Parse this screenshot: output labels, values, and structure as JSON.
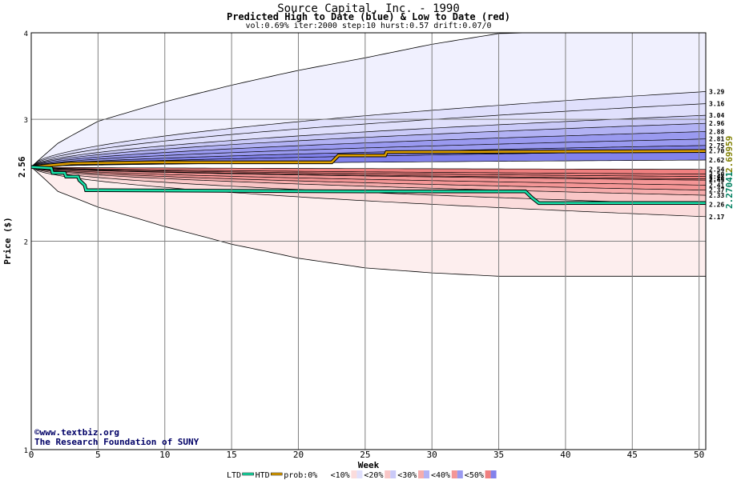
{
  "header": {
    "title": "Source Capital, Inc. - 1990",
    "subtitle": "Predicted High to Date (blue) &  Low to Date (red)",
    "params": "vol:0.69% iter:2000 step:10 hurst:0.57 drift:0.07/0"
  },
  "credits": {
    "line1": "©www.textbiz.org",
    "line2": "The Research Foundation of SUNY"
  },
  "legend": {
    "ltd": "LTD",
    "htd": "HTD",
    "prob": "prob:0%",
    "bins": [
      "<10%",
      "<20%",
      "<30%",
      "<40%",
      "<50%"
    ],
    "ltd_color": "#19e0a8",
    "htd_color": "#e0a000"
  },
  "colors": {
    "htd": "#e0a000",
    "ltd": "#19e0a8",
    "blue_bands": [
      "#f0f0fe",
      "#e0e0fc",
      "#cacaf8",
      "#b2b2f4",
      "#9a9af0",
      "#8282ec"
    ],
    "red_bands": [
      "#fdeeee",
      "#fbdcdc",
      "#f9c6c6",
      "#f6acac",
      "#f49696",
      "#f08080"
    ],
    "grid": "#808080",
    "annotation": "#808000"
  },
  "chart_data": {
    "type": "area",
    "xlabel": "Week",
    "ylabel": "Price ($)",
    "xlim": [
      0,
      50.5
    ],
    "ylim": [
      1,
      4
    ],
    "yscale": "log",
    "xticks": [
      0,
      5,
      10,
      15,
      20,
      25,
      30,
      35,
      40,
      45,
      50
    ],
    "yticks": [
      1,
      2,
      3,
      4
    ],
    "start_price": 2.56,
    "start_label": "2.56",
    "upper_envelope_outer": [
      [
        0,
        2.56
      ],
      [
        2,
        2.77
      ],
      [
        5,
        2.98
      ],
      [
        10,
        3.18
      ],
      [
        15,
        3.36
      ],
      [
        20,
        3.53
      ],
      [
        25,
        3.68
      ],
      [
        30,
        3.85
      ],
      [
        35,
        3.99
      ],
      [
        37,
        4.0
      ]
    ],
    "lower_envelope_outer": [
      [
        0,
        2.56
      ],
      [
        2,
        2.36
      ],
      [
        5,
        2.24
      ],
      [
        10,
        2.1
      ],
      [
        15,
        1.98
      ],
      [
        20,
        1.89
      ],
      [
        25,
        1.83
      ],
      [
        30,
        1.8
      ],
      [
        35,
        1.78
      ],
      [
        40,
        1.78
      ],
      [
        50.5,
        1.78
      ]
    ],
    "upper_quantile_end": [
      3.29,
      3.16,
      3.04,
      2.96,
      2.88,
      2.81,
      2.75,
      2.7,
      2.62
    ],
    "lower_quantile_end": [
      2.54,
      2.5,
      2.48,
      2.46,
      2.45,
      2.41,
      2.37,
      2.33,
      2.26,
      2.17
    ],
    "right_labels": [
      "3.29",
      "3.16",
      "3.04",
      "2.96",
      "2.88",
      "2.81",
      "2.75",
      "2.70",
      "2.62",
      "2.54",
      "2.50",
      "2.48",
      "2.46",
      "2.45",
      "2.41",
      "2.37",
      "2.33",
      "2.26",
      "2.17"
    ],
    "series": [
      {
        "name": "HTD",
        "points": [
          [
            0,
            2.56
          ],
          [
            1,
            2.57
          ],
          [
            2,
            2.58
          ],
          [
            3,
            2.59
          ],
          [
            9,
            2.6
          ],
          [
            22.5,
            2.6
          ],
          [
            23,
            2.66
          ],
          [
            26.5,
            2.66
          ],
          [
            26.6,
            2.69
          ],
          [
            50.5,
            2.69959
          ]
        ]
      },
      {
        "name": "LTD",
        "points": [
          [
            0,
            2.56
          ],
          [
            1.5,
            2.55
          ],
          [
            1.6,
            2.51
          ],
          [
            2.5,
            2.51
          ],
          [
            2.6,
            2.48
          ],
          [
            3.5,
            2.48
          ],
          [
            3.6,
            2.45
          ],
          [
            4,
            2.41
          ],
          [
            4.1,
            2.37
          ],
          [
            25,
            2.36
          ],
          [
            37,
            2.36
          ],
          [
            37.5,
            2.31
          ],
          [
            38,
            2.27
          ],
          [
            40,
            2.27
          ],
          [
            40.1,
            2.27041
          ],
          [
            50.5,
            2.27041
          ]
        ]
      }
    ],
    "end_annotations": [
      "2.69959",
      "2.27041"
    ]
  }
}
